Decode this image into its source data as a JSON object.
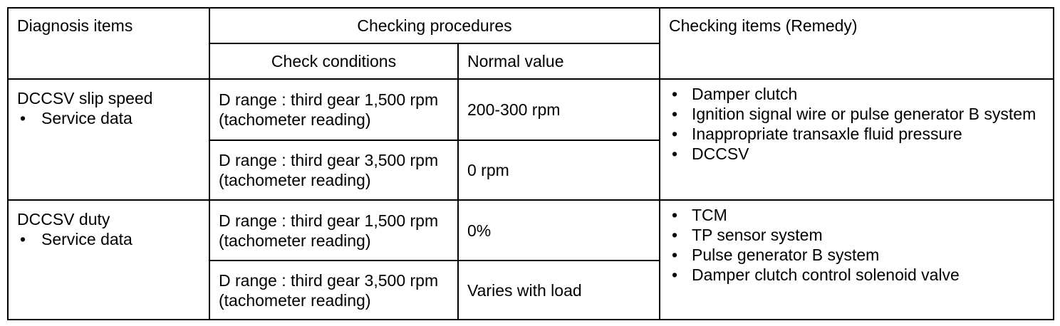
{
  "table": {
    "headers": {
      "diagnosis": "Diagnosis items",
      "procedures": "Checking procedures",
      "conditions": "Check conditions",
      "normal": "Normal value",
      "remedy": "Checking items (Remedy)"
    },
    "groups": [
      {
        "item": "DCCSV slip speed",
        "sub": "Service data",
        "checks": [
          {
            "condition": "D range : third gear 1,500 rpm (tachometer reading)",
            "normal": "200-300 rpm"
          },
          {
            "condition": "D range : third gear 3,500 rpm (tachometer reading)",
            "normal": "0 rpm"
          }
        ],
        "remedy": [
          "Damper clutch",
          "Ignition signal wire or pulse generator B system",
          "Inappropriate transaxle fluid pressure",
          "DCCSV"
        ]
      },
      {
        "item": "DCCSV duty",
        "sub": "Service data",
        "checks": [
          {
            "condition": "D range : third gear 1,500 rpm (tachometer reading)",
            "normal": "0%"
          },
          {
            "condition": "D range : third gear 3,500 rpm (tachometer reading)",
            "normal": "Varies with load"
          }
        ],
        "remedy": [
          "TCM",
          "TP sensor system",
          "Pulse generator B system",
          "Damper clutch control solenoid valve"
        ]
      }
    ]
  }
}
